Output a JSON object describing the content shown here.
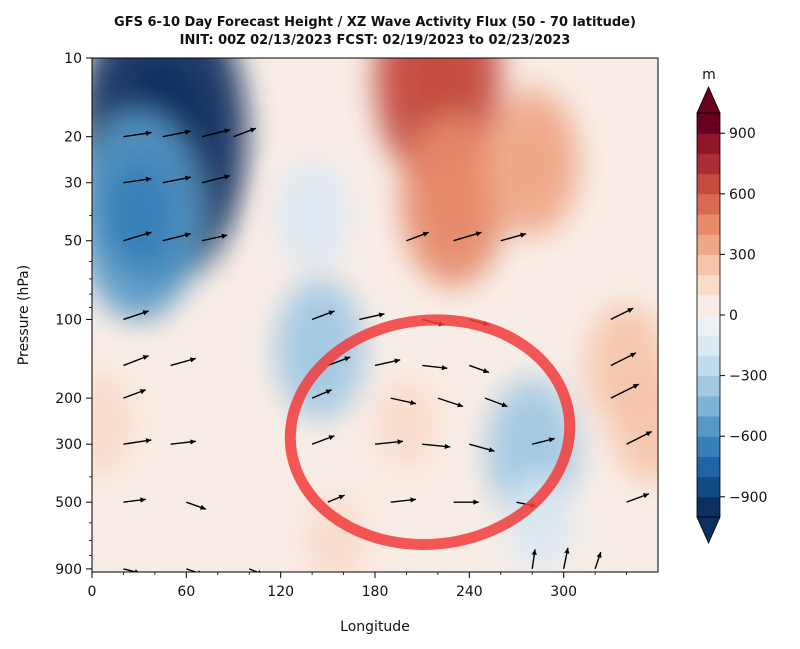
{
  "chart_data": {
    "type": "heatmap",
    "title": "GFS 6-10 Day Forecast Height / XZ Wave Activity Flux (50 - 70 latitude)",
    "subtitle": "INIT: 00Z 02/13/2023     FCST: 02/19/2023 to 02/23/2023",
    "xlabel": "Longitude",
    "ylabel": "Pressure (hPa)",
    "xlim": [
      0,
      360
    ],
    "ylim": [
      925,
      10
    ],
    "y_scale": "log",
    "x_ticks": [
      0,
      60,
      120,
      180,
      240,
      300
    ],
    "y_ticks": [
      10,
      20,
      30,
      50,
      100,
      200,
      300,
      500,
      900
    ],
    "colorbar": {
      "label": "m",
      "range": [
        -1000,
        1000
      ],
      "ticks": [
        900,
        600,
        300,
        0,
        -300,
        -600,
        -900
      ],
      "extend": "both",
      "colors": [
        "#0b2f5e",
        "#124a86",
        "#1f64a4",
        "#3680b9",
        "#5699c7",
        "#7fb3d6",
        "#a3c9e2",
        "#c3dced",
        "#dbe9f3",
        "#edf2f6",
        "#f8ede6",
        "#f9dccb",
        "#f6c4aa",
        "#f0a788",
        "#e68a69",
        "#d76a51",
        "#c44b40",
        "#ac2d33",
        "#8f1628",
        "#67001f"
      ]
    },
    "height_anomaly_field": [
      {
        "lon": 45,
        "p": 20,
        "value": -950
      },
      {
        "lon": 30,
        "p": 40,
        "value": -600
      },
      {
        "lon": 145,
        "p": 130,
        "value": -330
      },
      {
        "lon": 140,
        "p": 40,
        "value": -200
      },
      {
        "lon": 280,
        "p": 320,
        "value": -350
      },
      {
        "lon": 285,
        "p": 600,
        "value": -150
      },
      {
        "lon": 220,
        "p": 12,
        "value": 620
      },
      {
        "lon": 230,
        "p": 35,
        "value": 450
      },
      {
        "lon": 280,
        "p": 25,
        "value": 350
      },
      {
        "lon": 340,
        "p": 150,
        "value": 250
      },
      {
        "lon": 355,
        "p": 250,
        "value": 230
      },
      {
        "lon": 5,
        "p": 250,
        "value": 180
      },
      {
        "lon": 200,
        "p": 250,
        "value": 120
      },
      {
        "lon": 155,
        "p": 700,
        "value": 120
      }
    ],
    "flux_vectors": [
      {
        "lon": 20,
        "p": 20,
        "u": 1,
        "v": 0.15
      },
      {
        "lon": 45,
        "p": 20,
        "u": 1,
        "v": 0.2
      },
      {
        "lon": 70,
        "p": 20,
        "u": 1,
        "v": 0.25
      },
      {
        "lon": 90,
        "p": 20,
        "u": 0.8,
        "v": 0.3
      },
      {
        "lon": 20,
        "p": 30,
        "u": 1,
        "v": 0.15
      },
      {
        "lon": 45,
        "p": 30,
        "u": 1,
        "v": 0.2
      },
      {
        "lon": 70,
        "p": 30,
        "u": 1,
        "v": 0.25
      },
      {
        "lon": 20,
        "p": 50,
        "u": 1,
        "v": 0.3
      },
      {
        "lon": 45,
        "p": 50,
        "u": 1,
        "v": 0.25
      },
      {
        "lon": 70,
        "p": 50,
        "u": 0.9,
        "v": 0.2
      },
      {
        "lon": 200,
        "p": 50,
        "u": 0.8,
        "v": 0.3
      },
      {
        "lon": 230,
        "p": 50,
        "u": 1,
        "v": 0.3
      },
      {
        "lon": 260,
        "p": 50,
        "u": 0.9,
        "v": 0.25
      },
      {
        "lon": 20,
        "p": 100,
        "u": 0.9,
        "v": 0.3
      },
      {
        "lon": 140,
        "p": 100,
        "u": 0.8,
        "v": 0.3
      },
      {
        "lon": 170,
        "p": 100,
        "u": 0.9,
        "v": 0.2
      },
      {
        "lon": 210,
        "p": 100,
        "u": 0.8,
        "v": -0.2
      },
      {
        "lon": 240,
        "p": 100,
        "u": 0.7,
        "v": -0.2
      },
      {
        "lon": 330,
        "p": 100,
        "u": 0.8,
        "v": 0.4
      },
      {
        "lon": 20,
        "p": 150,
        "u": 0.9,
        "v": 0.35
      },
      {
        "lon": 50,
        "p": 150,
        "u": 0.9,
        "v": 0.25
      },
      {
        "lon": 150,
        "p": 150,
        "u": 0.8,
        "v": 0.3
      },
      {
        "lon": 180,
        "p": 150,
        "u": 0.9,
        "v": 0.2
      },
      {
        "lon": 210,
        "p": 150,
        "u": 0.9,
        "v": -0.1
      },
      {
        "lon": 240,
        "p": 150,
        "u": 0.7,
        "v": -0.25
      },
      {
        "lon": 330,
        "p": 150,
        "u": 0.9,
        "v": 0.45
      },
      {
        "lon": 20,
        "p": 200,
        "u": 0.8,
        "v": 0.3
      },
      {
        "lon": 140,
        "p": 200,
        "u": 0.7,
        "v": 0.3
      },
      {
        "lon": 190,
        "p": 200,
        "u": 0.9,
        "v": -0.2
      },
      {
        "lon": 220,
        "p": 200,
        "u": 0.9,
        "v": -0.3
      },
      {
        "lon": 250,
        "p": 200,
        "u": 0.8,
        "v": -0.3
      },
      {
        "lon": 330,
        "p": 200,
        "u": 1,
        "v": 0.5
      },
      {
        "lon": 20,
        "p": 300,
        "u": 1,
        "v": 0.15
      },
      {
        "lon": 50,
        "p": 300,
        "u": 0.9,
        "v": 0.1
      },
      {
        "lon": 140,
        "p": 300,
        "u": 0.8,
        "v": 0.3
      },
      {
        "lon": 180,
        "p": 300,
        "u": 1,
        "v": 0.1
      },
      {
        "lon": 210,
        "p": 300,
        "u": 1,
        "v": -0.1
      },
      {
        "lon": 240,
        "p": 300,
        "u": 0.9,
        "v": -0.25
      },
      {
        "lon": 280,
        "p": 300,
        "u": 0.8,
        "v": 0.2
      },
      {
        "lon": 340,
        "p": 300,
        "u": 0.9,
        "v": 0.45
      },
      {
        "lon": 20,
        "p": 500,
        "u": 0.8,
        "v": 0.1
      },
      {
        "lon": 60,
        "p": 500,
        "u": 0.7,
        "v": -0.25
      },
      {
        "lon": 150,
        "p": 500,
        "u": 0.6,
        "v": 0.25
      },
      {
        "lon": 190,
        "p": 500,
        "u": 0.9,
        "v": 0.1
      },
      {
        "lon": 230,
        "p": 500,
        "u": 0.9,
        "v": 0
      },
      {
        "lon": 270,
        "p": 500,
        "u": 0.7,
        "v": -0.15
      },
      {
        "lon": 340,
        "p": 500,
        "u": 0.8,
        "v": 0.3
      },
      {
        "lon": 20,
        "p": 900,
        "u": 0.6,
        "v": -0.15
      },
      {
        "lon": 60,
        "p": 900,
        "u": 0.6,
        "v": -0.2
      },
      {
        "lon": 100,
        "p": 900,
        "u": 0.5,
        "v": -0.2
      },
      {
        "lon": 280,
        "p": 900,
        "u": 0.1,
        "v": 0.7
      },
      {
        "lon": 300,
        "p": 900,
        "u": 0.15,
        "v": 0.75
      },
      {
        "lon": 320,
        "p": 900,
        "u": 0.2,
        "v": 0.6
      }
    ],
    "annotation": {
      "type": "red-circle",
      "lon_center": 215,
      "p_center": 270
    },
    "grid": false
  }
}
